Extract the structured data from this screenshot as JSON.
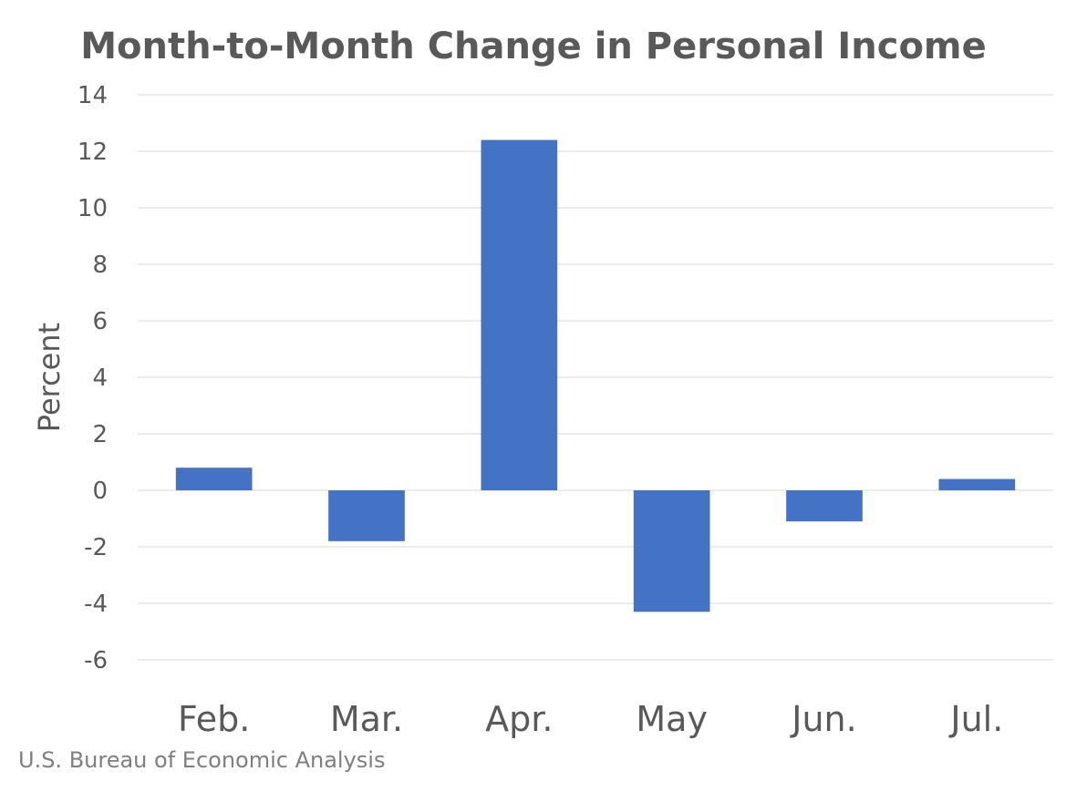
{
  "chart_data": {
    "type": "bar",
    "title": "Month-to-Month Change in Personal Income",
    "ylabel": "Percent",
    "xlabel": "",
    "categories": [
      "Feb.",
      "Mar.",
      "Apr.",
      "May",
      "Jun.",
      "Jul."
    ],
    "values": [
      0.8,
      -1.8,
      12.4,
      -4.3,
      -1.1,
      0.4
    ],
    "ylim": [
      -6,
      14
    ],
    "yticks": [
      -6,
      -4,
      -2,
      0,
      2,
      4,
      6,
      8,
      10,
      12,
      14
    ],
    "grid": true,
    "legend": "none",
    "bar_color": "#4472c4",
    "source": "U.S. Bureau of Economic Analysis"
  }
}
